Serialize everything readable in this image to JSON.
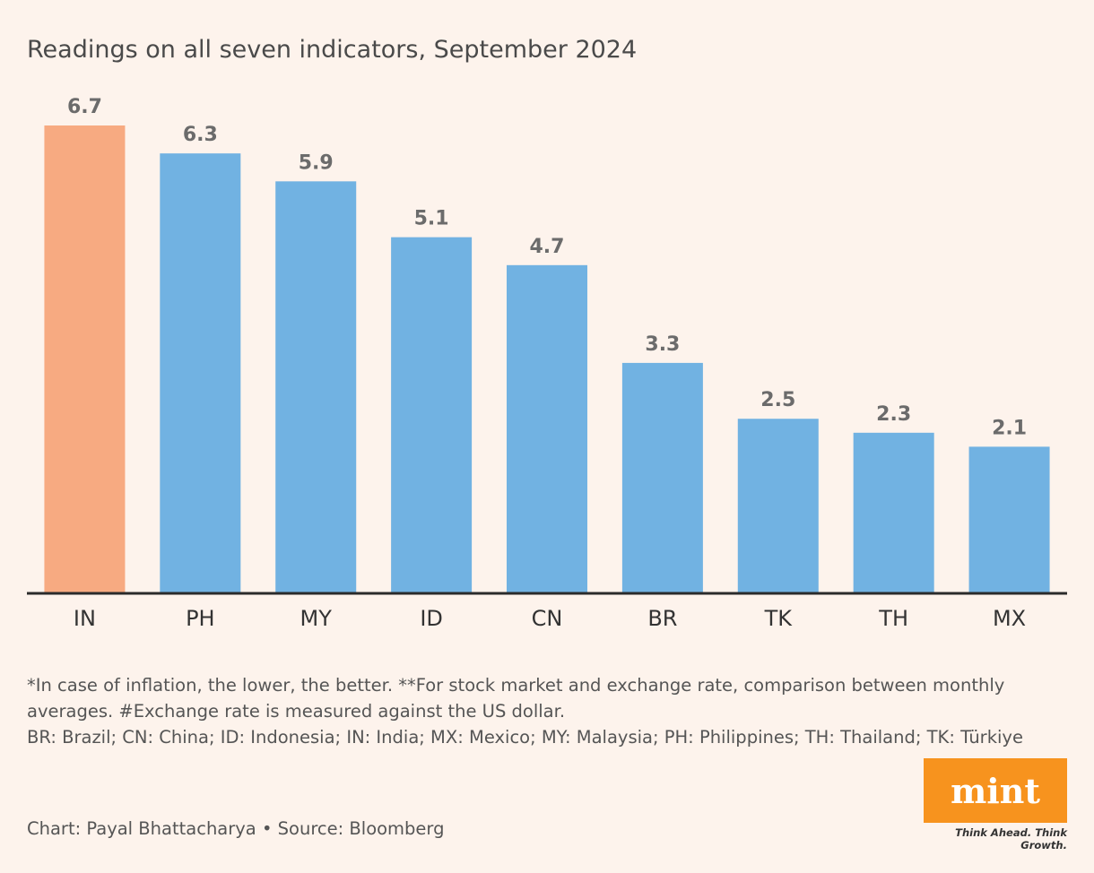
{
  "chart_data": {
    "type": "bar",
    "title": "Readings on all seven indicators, September 2024",
    "categories": [
      "IN",
      "PH",
      "MY",
      "ID",
      "CN",
      "BR",
      "TK",
      "TH",
      "MX"
    ],
    "values": [
      6.7,
      6.3,
      5.9,
      5.1,
      4.7,
      3.3,
      2.5,
      2.3,
      2.1
    ],
    "colors": [
      "#f7aa81",
      "#71b2e2",
      "#71b2e2",
      "#71b2e2",
      "#71b2e2",
      "#71b2e2",
      "#71b2e2",
      "#71b2e2",
      "#71b2e2"
    ],
    "notes": [
      "*In case of inflation, the lower, the better. **For stock market and exchange rate, comparison between monthly averages. #Exchange rate is measured against the US dollar.",
      "BR: Brazil; CN: China; ID: Indonesia; IN: India; MX: Mexico; MY: Malaysia; PH: Philippines; TH: Thailand; TK: Türkiye"
    ],
    "credit": "Chart: Payal Bhattacharya • Source: Bloomberg",
    "logo": "mint",
    "tagline": "Think Ahead. Think Growth."
  }
}
